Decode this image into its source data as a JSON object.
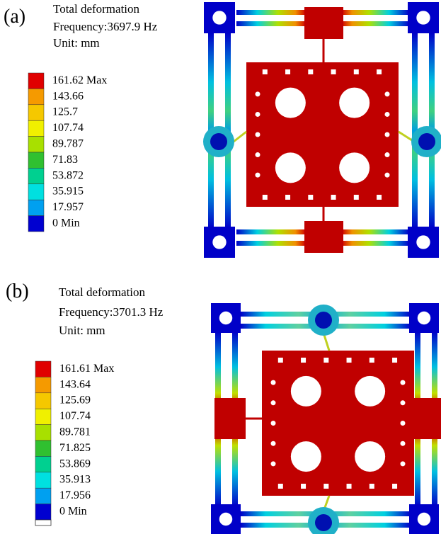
{
  "panels": [
    {
      "label": "(a)",
      "title": "Total deformation",
      "frequency": "Frequency:3697.9 Hz",
      "unit": "Unit: mm",
      "legend": [
        "161.62 Max",
        "143.66",
        "125.7",
        "107.74",
        "89.787",
        "71.83",
        "53.872",
        "35.915",
        "17.957",
        "0 Min"
      ]
    },
    {
      "label": "(b)",
      "title": "Total deformation",
      "frequency": "Frequency:3701.3 Hz",
      "unit": "Unit: mm",
      "legend": [
        "161.61 Max",
        "143.64",
        "125.69",
        "107.74",
        "89.781",
        "71.825",
        "53.869",
        "35.913",
        "17.956",
        "0 Min"
      ]
    }
  ],
  "legend_colors": [
    "#e00000",
    "#f59a00",
    "#f5c800",
    "#f0f000",
    "#a8e000",
    "#30c030",
    "#00d090",
    "#00e0e0",
    "#00a0f0",
    "#0000d0"
  ]
}
